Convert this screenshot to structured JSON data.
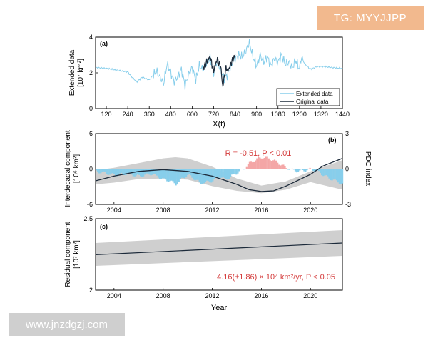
{
  "watermarks": {
    "top": "TG: MYYJJPP",
    "bottom": "www.jnzdgzj.com"
  },
  "colors": {
    "extended": "#87ceeb",
    "original": "#1c2a3a",
    "band": "#cfcfcf",
    "pdo_neg": "#87ceeb",
    "pdo_pos": "#f4a6a6",
    "annot": "#d43c3c"
  },
  "chart_data": [
    {
      "type": "line",
      "panel": "(a)",
      "xlabel": "X(t)",
      "ylabel_line1": "Extended data",
      "ylabel_line2": "[10⁷ km²]",
      "xlim": [
        60,
        1440
      ],
      "ylim": [
        0,
        4
      ],
      "xticks": [
        "120",
        "240",
        "360",
        "480",
        "600",
        "720",
        "840",
        "960",
        "1080",
        "1200",
        "1320",
        "1440"
      ],
      "yticks": [
        "0",
        "2",
        "4"
      ],
      "legend": {
        "position": "bottom-right",
        "entries": [
          "Extended data",
          "Original data"
        ]
      },
      "series": [
        {
          "name": "Extended data",
          "x": [
            60,
            120,
            180,
            240,
            260,
            290,
            320,
            360,
            400,
            440,
            460,
            480,
            500,
            520,
            540,
            560,
            580,
            600,
            620,
            640,
            660,
            680,
            700,
            720,
            740,
            760,
            780,
            800,
            820,
            840,
            860,
            880,
            900,
            920,
            940,
            960,
            980,
            1000,
            1020,
            1040,
            1060,
            1080,
            1100,
            1120,
            1140,
            1160,
            1180,
            1200,
            1210,
            1230,
            1260,
            1300,
            1340,
            1380,
            1440
          ],
          "y": [
            2.3,
            2.25,
            2.15,
            2.05,
            1.8,
            1.5,
            1.75,
            1.6,
            2.1,
            1.4,
            2.5,
            2.0,
            1.5,
            1.8,
            2.2,
            1.3,
            1.9,
            2.3,
            1.6,
            2.4,
            2.2,
            2.5,
            2.8,
            2.0,
            2.7,
            2.1,
            1.7,
            1.9,
            2.5,
            2.8,
            3.0,
            2.9,
            3.2,
            3.7,
            2.9,
            2.4,
            3.0,
            2.6,
            2.9,
            2.4,
            2.8,
            2.6,
            3.0,
            2.5,
            2.6,
            2.3,
            2.7,
            2.2,
            2.9,
            2.5,
            2.2,
            2.35,
            2.35,
            2.3,
            2.25
          ]
        },
        {
          "name": "Original data",
          "x": [
            660,
            680,
            700,
            720,
            740,
            750,
            760,
            770,
            780,
            790,
            800,
            820,
            840
          ],
          "y": [
            2.2,
            2.6,
            2.9,
            2.1,
            2.8,
            2.5,
            2.4,
            1.2,
            1.8,
            2.3,
            2.1,
            2.6,
            3.0
          ]
        }
      ]
    },
    {
      "type": "line",
      "panel": "(b)",
      "ylabel_line1": "Interdecadal component",
      "ylabel_line2": "[10⁶ km²]",
      "ylabel_right": "PDO index",
      "xlim": [
        2002.5,
        2022.6
      ],
      "ylim": [
        -6,
        6
      ],
      "ylim_right": [
        -3,
        3
      ],
      "xticks": [
        "2004",
        "2008",
        "2012",
        "2016",
        "2020"
      ],
      "yticks": [
        "-6",
        "0",
        "6"
      ],
      "yticks_right": [
        "-3",
        "0",
        "3"
      ],
      "annotation": "R = -0.51, P < 0.01",
      "series": [
        {
          "name": "Interdecadal component",
          "x": [
            2002.5,
            2004,
            2006,
            2008,
            2010,
            2012,
            2014,
            2015,
            2016,
            2017,
            2018,
            2020,
            2021,
            2022.6
          ],
          "y": [
            -2.0,
            -1.2,
            -0.4,
            -0.1,
            -0.4,
            -1.2,
            -2.6,
            -3.5,
            -3.8,
            -3.7,
            -2.9,
            -0.9,
            0.5,
            1.8
          ]
        },
        {
          "name": "Upper band",
          "x": [
            2002.5,
            2004,
            2006,
            2008,
            2009,
            2010,
            2012,
            2014,
            2016,
            2018,
            2020,
            2022.6
          ],
          "y": [
            -0.2,
            0.2,
            1.0,
            1.8,
            2.0,
            1.8,
            0.4,
            -1.6,
            -2.8,
            -2.1,
            -0.4,
            1.5
          ]
        },
        {
          "name": "Lower band",
          "x": [
            2002.5,
            2004,
            2006,
            2008,
            2010,
            2012,
            2014,
            2016,
            2018,
            2020,
            2022.6
          ],
          "y": [
            -2.6,
            -2.3,
            -1.7,
            -1.6,
            -1.8,
            -2.9,
            -3.7,
            -4.1,
            -3.5,
            -2.2,
            -3.5
          ]
        },
        {
          "name": "PDO index",
          "x": [
            2002.5,
            2003,
            2004,
            2005,
            2006,
            2007,
            2008,
            2008.5,
            2009,
            2009.5,
            2010,
            2011,
            2012,
            2012.5,
            2013,
            2014,
            2014.5,
            2015,
            2015.5,
            2016,
            2016.5,
            2017,
            2017.5,
            2018,
            2018.5,
            2019,
            2019.5,
            2020,
            2020.5,
            2021,
            2021.5,
            2022,
            2022.6
          ],
          "y": [
            -0.2,
            -0.3,
            -0.5,
            -0.4,
            -0.6,
            -0.4,
            -0.9,
            -1.0,
            -1.3,
            -0.8,
            -0.5,
            -1.2,
            -1.0,
            -0.6,
            -0.9,
            -0.3,
            0.0,
            0.5,
            0.8,
            1.0,
            0.9,
            0.7,
            0.4,
            0.1,
            -0.1,
            -0.2,
            -0.1,
            0.0,
            -0.2,
            -0.5,
            -0.8,
            -1.0,
            -1.3
          ]
        }
      ]
    },
    {
      "type": "line",
      "panel": "(c)",
      "xlabel": "Year",
      "ylabel_line1": "Residual component",
      "ylabel_line2": "[10⁷ km²]",
      "xlim": [
        2002.5,
        2022.6
      ],
      "ylim": [
        2,
        2.5
      ],
      "xticks": [
        "2004",
        "2008",
        "2012",
        "2016",
        "2020"
      ],
      "yticks": [
        "2",
        "2.5"
      ],
      "annotation": "4.16(±1.86) × 10⁴ km²/yr, P < 0.05",
      "series": [
        {
          "name": "Residual component",
          "x": [
            2002.5,
            2022.6
          ],
          "y": [
            2.248,
            2.33
          ]
        },
        {
          "name": "Upper band",
          "x": [
            2002.5,
            2022.6
          ],
          "y": [
            2.33,
            2.42
          ]
        },
        {
          "name": "Lower band",
          "x": [
            2002.5,
            2022.6
          ],
          "y": [
            2.17,
            2.24
          ]
        }
      ]
    }
  ]
}
